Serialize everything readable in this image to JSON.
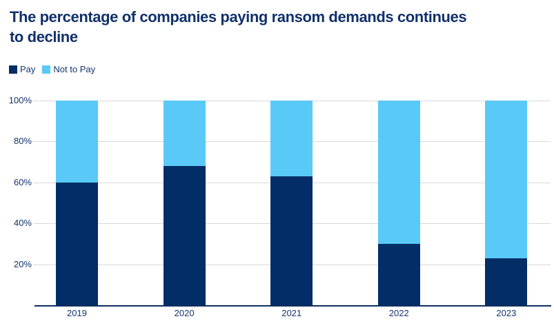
{
  "title_lines": [
    "The percentage of companies paying ransom demands continues",
    "to decline"
  ],
  "colors": {
    "title_text": "#11316b",
    "axis_text": "#13336d",
    "gridline": "#d9d9d9",
    "axis_line": "#0d2f5f",
    "pay": "#032d66",
    "not_to_pay": "#59c9f7",
    "background": "#ffffff"
  },
  "legend": {
    "items": [
      {
        "label": "Pay",
        "color": "#032d66"
      },
      {
        "label": "Not to Pay",
        "color": "#59c9f7"
      }
    ]
  },
  "chart_data": {
    "type": "bar",
    "stacked": true,
    "title": "The percentage of companies paying ransom demands continues to decline",
    "categories": [
      "2019",
      "2020",
      "2021",
      "2022",
      "2023"
    ],
    "series": [
      {
        "name": "Pay",
        "color": "#032d66",
        "values": [
          60,
          68,
          63,
          30,
          23
        ]
      },
      {
        "name": "Not to Pay",
        "color": "#59c9f7",
        "values": [
          40,
          32,
          37,
          70,
          77
        ]
      }
    ],
    "xlabel": "",
    "ylabel": "",
    "ylim": [
      0,
      100
    ],
    "y_ticks": [
      "20%",
      "40%",
      "60%",
      "80%",
      "100%"
    ],
    "y_tick_values": [
      20,
      40,
      60,
      80,
      100
    ],
    "grid": true,
    "legend_position": "top-left"
  }
}
